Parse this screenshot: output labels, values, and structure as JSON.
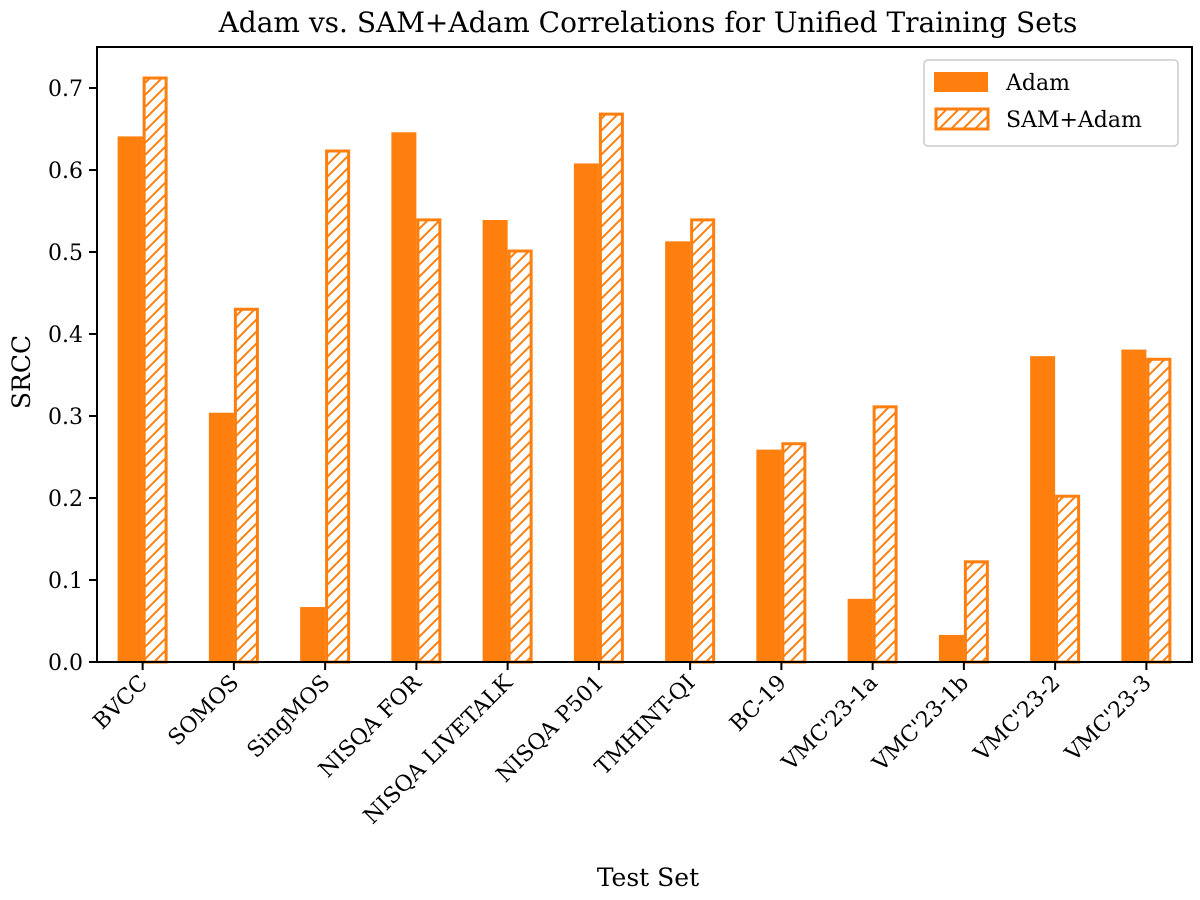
{
  "chart_data": {
    "type": "bar",
    "title": "Adam vs. SAM+Adam Correlations for Unified Training Sets",
    "xlabel": "Test Set",
    "ylabel": "SRCC",
    "ylim": [
      0,
      0.75
    ],
    "yticks": [
      0.0,
      0.1,
      0.2,
      0.3,
      0.4,
      0.5,
      0.6,
      0.7
    ],
    "ytick_labels": [
      "0.0",
      "0.1",
      "0.2",
      "0.3",
      "0.4",
      "0.5",
      "0.6",
      "0.7"
    ],
    "categories": [
      "BVCC",
      "SOMOS",
      "SingMOS",
      "NISQA FOR",
      "NISQA LIVETALK",
      "NISQA P501",
      "TMHINT-QI",
      "BC-19",
      "VMC'23-1a",
      "VMC'23-1b",
      "VMC'23-2",
      "VMC'23-3"
    ],
    "series": [
      {
        "name": "Adam",
        "style": "solid",
        "values": [
          0.641,
          0.304,
          0.067,
          0.646,
          0.539,
          0.608,
          0.513,
          0.259,
          0.077,
          0.033,
          0.373,
          0.381
        ]
      },
      {
        "name": "SAM+Adam",
        "style": "hatched",
        "values": [
          0.714,
          0.432,
          0.625,
          0.541,
          0.503,
          0.67,
          0.541,
          0.268,
          0.313,
          0.124,
          0.204,
          0.371
        ]
      }
    ],
    "colors": {
      "bar": "#ff7f0e",
      "axis": "#000000",
      "background": "#ffffff"
    },
    "legend": {
      "placement": "top-right"
    },
    "grid": false,
    "x_tick_rotation_deg": 45
  }
}
